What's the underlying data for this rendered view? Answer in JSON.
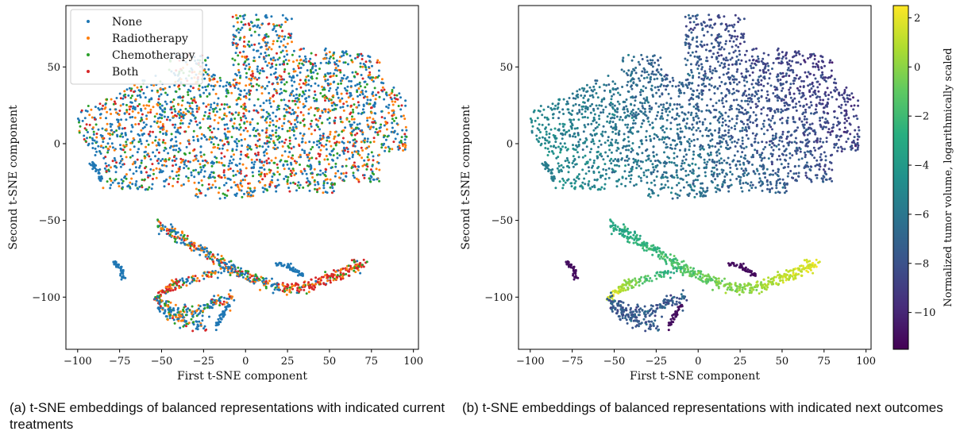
{
  "chart_data": [
    {
      "type": "scatter",
      "xlabel": "First t-SNE component",
      "ylabel": "Second t-SNE component",
      "xlim": [
        -107,
        103
      ],
      "ylim": [
        -134,
        90
      ],
      "xticks": [
        -100,
        -75,
        -50,
        -25,
        0,
        25,
        50,
        75,
        100
      ],
      "yticks": [
        -100,
        -50,
        0,
        50
      ],
      "xtick_labels": [
        "−100",
        "−75",
        "−50",
        "−25",
        "0",
        "25",
        "50",
        "75",
        "100"
      ],
      "ytick_labels": [
        "−100",
        "−50",
        "0",
        "50"
      ],
      "grid": false,
      "legend_position": "top-left",
      "series": [
        {
          "name": "None",
          "color": "#1f77b4"
        },
        {
          "name": "Radiotherapy",
          "color": "#ff7f0e"
        },
        {
          "name": "Chemotherapy",
          "color": "#2ca02c"
        },
        {
          "name": "Both",
          "color": "#d62728"
        }
      ]
    },
    {
      "type": "scatter",
      "xlabel": "First t-SNE component",
      "ylabel": "Second t-SNE component",
      "xlim": [
        -107,
        103
      ],
      "ylim": [
        -134,
        90
      ],
      "xticks": [
        -100,
        -75,
        -50,
        -25,
        0,
        25,
        50,
        75,
        100
      ],
      "yticks": [
        -100,
        -50,
        0,
        50
      ],
      "xtick_labels": [
        "−100",
        "−75",
        "−50",
        "−25",
        "0",
        "25",
        "50",
        "75",
        "100"
      ],
      "ytick_labels": [
        "−100",
        "−50",
        "0",
        "50"
      ],
      "grid": false,
      "colormap": "viridis",
      "colorbar": {
        "label": "Normalized tumor volume, logarithmically scaled",
        "range": [
          -11.5,
          2.5
        ],
        "ticks": [
          2,
          0,
          -2,
          -4,
          -6,
          -8,
          -10
        ],
        "tick_labels": [
          "2",
          "0",
          "−2",
          "−4",
          "−6",
          "−8",
          "−10"
        ]
      }
    }
  ],
  "captions": {
    "a": "(a) t-SNE embeddings of balanced representations with indicated current treatments",
    "b": "(b) t-SNE embeddings of balanced representations with indicated next outcomes"
  }
}
